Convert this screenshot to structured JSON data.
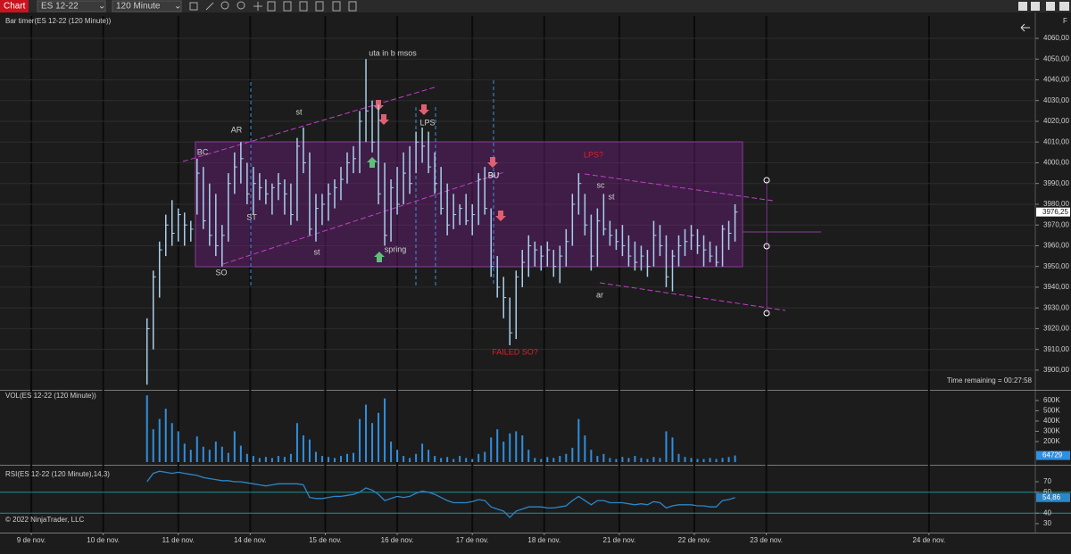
{
  "ui": {
    "menu": "Chart",
    "instrument": "ES 12-22",
    "interval": "120 Minute",
    "panel_button": "F",
    "copyright": "© 2022 NinjaTrader, LLC",
    "time_remaining": "Time remaining = 00:27:58"
  },
  "chart_data": [
    {
      "type": "ohlc",
      "title": "Bar timer(ES 12-22 (120 Minute))",
      "color": "#a9cfee",
      "x": [
        0,
        1,
        2,
        3,
        4,
        5,
        6,
        7,
        8,
        9,
        10,
        11,
        12,
        13,
        14,
        15,
        16,
        17,
        18,
        19,
        20,
        21,
        22,
        23,
        24,
        25,
        26,
        27,
        28,
        29,
        30,
        31,
        32,
        33,
        34,
        35,
        36,
        37,
        38,
        39,
        40,
        41,
        42,
        43,
        44,
        45,
        46,
        47,
        48,
        49,
        50,
        51,
        52,
        53,
        54,
        55,
        56,
        57,
        58,
        59,
        60,
        61,
        62,
        63,
        64,
        65,
        66,
        67,
        68,
        69,
        70,
        71,
        72,
        73,
        74,
        75,
        76,
        77,
        78,
        79,
        80,
        81,
        82,
        83,
        84,
        85,
        86,
        87,
        88,
        89,
        90,
        91,
        92,
        93,
        94
      ],
      "xlim": [
        -23.5,
        142
      ],
      "xticks": [
        {
          "value": -18.5,
          "label": "9 de nov."
        },
        {
          "value": -7,
          "label": "10 de nov."
        },
        {
          "value": 5,
          "label": "11 de nov."
        },
        {
          "value": 16.5,
          "label": "14 de nov."
        },
        {
          "value": 28.5,
          "label": "15 de nov."
        },
        {
          "value": 40,
          "label": "16 de nov."
        },
        {
          "value": 52,
          "label": "17 de nov."
        },
        {
          "value": 63.5,
          "label": "18 de nov."
        },
        {
          "value": 75.5,
          "label": "21 de nov."
        },
        {
          "value": 87.5,
          "label": "22 de nov."
        },
        {
          "value": 99,
          "label": "23 de nov."
        },
        {
          "value": 125,
          "label": "24 de nov."
        }
      ],
      "high": [
        3925,
        3948,
        3962,
        3975,
        3982,
        3978,
        3976,
        3972,
        4002,
        3998,
        3990,
        3985,
        3970,
        3995,
        4005,
        4010,
        4000,
        3998,
        3995,
        3992,
        3990,
        3995,
        3992,
        3990,
        4012,
        4017,
        4005,
        3985,
        3985,
        3990,
        3992,
        3998,
        4005,
        4008,
        4025,
        4050,
        4030,
        4028,
        4000,
        3992,
        3998,
        4005,
        4008,
        4015,
        4017,
        4015,
        4005,
        3998,
        3990,
        3985,
        3980,
        3985,
        3980,
        3995,
        3998,
        3978,
        3955,
        3945,
        3935,
        3948,
        3958,
        3965,
        3962,
        3960,
        3962,
        3958,
        3960,
        3968,
        3985,
        3995,
        3985,
        3975,
        3978,
        3985,
        3972,
        3968,
        3970,
        3965,
        3962,
        3960,
        3958,
        3972,
        3970,
        3965,
        3958,
        3965,
        3968,
        3970,
        3968,
        3965,
        3962,
        3960,
        3970,
        3972,
        3980
      ],
      "low": [
        3893,
        3910,
        3935,
        3955,
        3960,
        3962,
        3960,
        3962,
        3975,
        3968,
        3960,
        3955,
        3950,
        3962,
        3985,
        3990,
        3980,
        3975,
        3982,
        3980,
        3975,
        3982,
        3975,
        3970,
        3972,
        3995,
        3965,
        3962,
        3970,
        3972,
        3978,
        3982,
        3990,
        3995,
        3995,
        4010,
        4005,
        3980,
        3960,
        3962,
        3975,
        3980,
        3985,
        3995,
        4000,
        3995,
        3985,
        3975,
        3965,
        3968,
        3970,
        3970,
        3965,
        3970,
        3975,
        3945,
        3935,
        3925,
        3912,
        3915,
        3940,
        3945,
        3950,
        3948,
        3950,
        3945,
        3942,
        3950,
        3960,
        3975,
        3965,
        3948,
        3950,
        3965,
        3960,
        3958,
        3955,
        3950,
        3948,
        3948,
        3945,
        3950,
        3955,
        3940,
        3938,
        3950,
        3955,
        3958,
        3956,
        3950,
        3952,
        3950,
        3950,
        3958,
        3962
      ],
      "close": [
        3920,
        3945,
        3958,
        3970,
        3966,
        3975,
        3970,
        3968,
        3995,
        3972,
        3965,
        3960,
        3965,
        3990,
        3998,
        4002,
        3985,
        3990,
        3988,
        3985,
        3988,
        3990,
        3985,
        3975,
        4008,
        4000,
        3968,
        3978,
        3980,
        3985,
        3988,
        3992,
        4000,
        4002,
        4020,
        4025,
        4010,
        3985,
        3965,
        3988,
        3980,
        3995,
        3990,
        4010,
        4008,
        3998,
        3990,
        3978,
        3970,
        3975,
        3978,
        3972,
        3975,
        3992,
        3978,
        3950,
        3940,
        3935,
        3918,
        3945,
        3952,
        3960,
        3958,
        3955,
        3958,
        3950,
        3955,
        3962,
        3980,
        3990,
        3970,
        3955,
        3972,
        3968,
        3965,
        3962,
        3960,
        3955,
        3952,
        3955,
        3950,
        3965,
        3960,
        3945,
        3955,
        3960,
        3962,
        3965,
        3960,
        3958,
        3955,
        3952,
        3968,
        3966,
        3976.25
      ],
      "current_label": "3976,25",
      "ylim": [
        3890.5,
        4070.75
      ],
      "yticks": [
        {
          "value": 3900,
          "label": "3900,00"
        },
        {
          "value": 3910,
          "label": "3910,00"
        },
        {
          "value": 3920,
          "label": "3920,00"
        },
        {
          "value": 3930,
          "label": "3930,00"
        },
        {
          "value": 3940,
          "label": "3940,00"
        },
        {
          "value": 3950,
          "label": "3950,00"
        },
        {
          "value": 3960,
          "label": "3960,00"
        },
        {
          "value": 3970,
          "label": "3970,00"
        },
        {
          "value": 3980,
          "label": "3980,00"
        },
        {
          "value": 3990,
          "label": "3990,00"
        },
        {
          "value": 4000,
          "label": "4000,00"
        },
        {
          "value": 4010,
          "label": "4010,00"
        },
        {
          "value": 4020,
          "label": "4020,00"
        },
        {
          "value": 4030,
          "label": "4030,00"
        },
        {
          "value": 4040,
          "label": "4040,00"
        },
        {
          "value": 4050,
          "label": "4050,00"
        },
        {
          "value": 4060,
          "label": "4060,00"
        }
      ],
      "grid": true,
      "annotations": [
        {
          "text": "uta in b msos",
          "color": "#d0d0d0"
        },
        {
          "text": "st",
          "color": "#d0d0d0"
        },
        {
          "text": "AR",
          "color": "#d0d0d0"
        },
        {
          "text": "BC",
          "color": "#d0d0d0"
        },
        {
          "text": "ST",
          "color": "#d0d0d0"
        },
        {
          "text": "SO",
          "color": "#d0d0d0"
        },
        {
          "text": "st",
          "color": "#d0d0d0"
        },
        {
          "text": "spring",
          "color": "#d0d0d0"
        },
        {
          "text": "LPS",
          "color": "#d0d0d0"
        },
        {
          "text": "BU",
          "color": "#ffffff"
        },
        {
          "text": "FAILED SO?",
          "color": "#e0202a"
        },
        {
          "text": "LPS?",
          "color": "#e0202a"
        },
        {
          "text": "sc",
          "color": "#d0d0d0"
        },
        {
          "text": "st",
          "color": "#d0d0d0"
        },
        {
          "text": "ar",
          "color": "#d0d0d0"
        }
      ]
    },
    {
      "type": "bar",
      "title": "VOL(ES 12-22 (120 Minute))",
      "color": "#2f8fe0",
      "values": [
        650000,
        320000,
        420000,
        520000,
        380000,
        300000,
        180000,
        120000,
        250000,
        150000,
        120000,
        200000,
        150000,
        90000,
        300000,
        160000,
        80000,
        60000,
        40000,
        50000,
        40000,
        60000,
        50000,
        80000,
        380000,
        260000,
        220000,
        100000,
        60000,
        50000,
        40000,
        60000,
        80000,
        90000,
        420000,
        560000,
        380000,
        480000,
        620000,
        200000,
        120000,
        60000,
        40000,
        80000,
        180000,
        120000,
        60000,
        40000,
        50000,
        30000,
        60000,
        40000,
        30000,
        80000,
        100000,
        240000,
        320000,
        200000,
        280000,
        300000,
        260000,
        120000,
        40000,
        30000,
        50000,
        40000,
        60000,
        80000,
        140000,
        420000,
        260000,
        120000,
        60000,
        80000,
        40000,
        30000,
        50000,
        40000,
        60000,
        40000,
        30000,
        50000,
        40000,
        300000,
        240000,
        80000,
        50000,
        40000,
        30000,
        30000,
        40000,
        30000,
        40000,
        50000,
        64729
      ],
      "ylim": [
        0,
        695000
      ],
      "yticks": [
        {
          "value": 200000,
          "label": "200K"
        },
        {
          "value": 300000,
          "label": "300K"
        },
        {
          "value": 400000,
          "label": "400K"
        },
        {
          "value": 500000,
          "label": "500K"
        },
        {
          "value": 600000,
          "label": "600K"
        }
      ],
      "current_label": "64729"
    },
    {
      "type": "line",
      "title": "RSI(ES 12-22 (120 Minute),14,3)",
      "color": "#2b86c8",
      "band_color": "#1b8f98",
      "values": [
        70,
        78,
        80,
        79,
        78,
        79,
        78,
        77,
        76,
        74,
        73,
        72,
        71,
        71,
        70,
        70,
        69,
        68,
        67,
        66,
        67,
        68,
        68,
        68,
        68,
        67,
        55,
        54,
        54,
        55,
        56,
        56,
        57,
        58,
        60,
        64,
        62,
        58,
        52,
        54,
        56,
        55,
        56,
        59,
        61,
        60,
        58,
        55,
        52,
        50,
        50,
        50,
        51,
        53,
        52,
        46,
        44,
        42,
        36,
        42,
        44,
        46,
        46,
        46,
        45,
        45,
        46,
        47,
        52,
        56,
        52,
        48,
        52,
        52,
        50,
        50,
        50,
        49,
        48,
        49,
        48,
        51,
        50,
        45,
        47,
        48,
        48,
        48,
        47,
        47,
        46,
        46,
        52,
        53,
        54.86
      ],
      "bands": [
        40,
        60
      ],
      "ylim": [
        21.5,
        85.3
      ],
      "yticks": [
        30,
        40,
        60,
        70
      ],
      "current_label": "54,86"
    }
  ]
}
